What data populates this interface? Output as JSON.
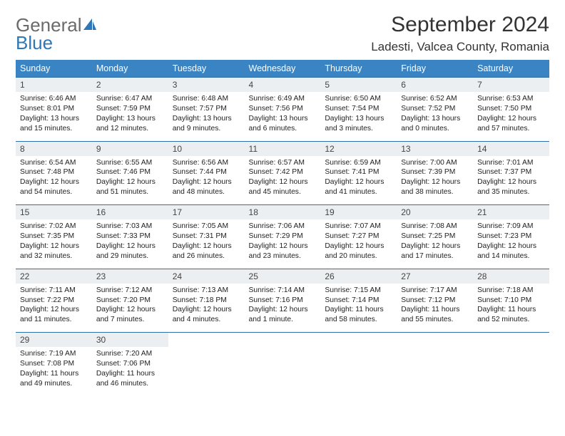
{
  "logo": {
    "general": "General",
    "blue": "Blue"
  },
  "title": "September 2024",
  "location": "Ladesti, Valcea County, Romania",
  "colors": {
    "header_bg": "#3b84c4",
    "header_text": "#ffffff",
    "daynum_bg": "#eceff1",
    "row_border": "#2f6ea9",
    "logo_gray": "#6a6a6a",
    "logo_blue": "#2f77b6",
    "page_bg": "#ffffff",
    "text": "#222222"
  },
  "weekdays": [
    "Sunday",
    "Monday",
    "Tuesday",
    "Wednesday",
    "Thursday",
    "Friday",
    "Saturday"
  ],
  "days": [
    {
      "n": 1,
      "sr": "6:46 AM",
      "ss": "8:01 PM",
      "dl": "13 hours and 15 minutes."
    },
    {
      "n": 2,
      "sr": "6:47 AM",
      "ss": "7:59 PM",
      "dl": "13 hours and 12 minutes."
    },
    {
      "n": 3,
      "sr": "6:48 AM",
      "ss": "7:57 PM",
      "dl": "13 hours and 9 minutes."
    },
    {
      "n": 4,
      "sr": "6:49 AM",
      "ss": "7:56 PM",
      "dl": "13 hours and 6 minutes."
    },
    {
      "n": 5,
      "sr": "6:50 AM",
      "ss": "7:54 PM",
      "dl": "13 hours and 3 minutes."
    },
    {
      "n": 6,
      "sr": "6:52 AM",
      "ss": "7:52 PM",
      "dl": "13 hours and 0 minutes."
    },
    {
      "n": 7,
      "sr": "6:53 AM",
      "ss": "7:50 PM",
      "dl": "12 hours and 57 minutes."
    },
    {
      "n": 8,
      "sr": "6:54 AM",
      "ss": "7:48 PM",
      "dl": "12 hours and 54 minutes."
    },
    {
      "n": 9,
      "sr": "6:55 AM",
      "ss": "7:46 PM",
      "dl": "12 hours and 51 minutes."
    },
    {
      "n": 10,
      "sr": "6:56 AM",
      "ss": "7:44 PM",
      "dl": "12 hours and 48 minutes."
    },
    {
      "n": 11,
      "sr": "6:57 AM",
      "ss": "7:42 PM",
      "dl": "12 hours and 45 minutes."
    },
    {
      "n": 12,
      "sr": "6:59 AM",
      "ss": "7:41 PM",
      "dl": "12 hours and 41 minutes."
    },
    {
      "n": 13,
      "sr": "7:00 AM",
      "ss": "7:39 PM",
      "dl": "12 hours and 38 minutes."
    },
    {
      "n": 14,
      "sr": "7:01 AM",
      "ss": "7:37 PM",
      "dl": "12 hours and 35 minutes."
    },
    {
      "n": 15,
      "sr": "7:02 AM",
      "ss": "7:35 PM",
      "dl": "12 hours and 32 minutes."
    },
    {
      "n": 16,
      "sr": "7:03 AM",
      "ss": "7:33 PM",
      "dl": "12 hours and 29 minutes."
    },
    {
      "n": 17,
      "sr": "7:05 AM",
      "ss": "7:31 PM",
      "dl": "12 hours and 26 minutes."
    },
    {
      "n": 18,
      "sr": "7:06 AM",
      "ss": "7:29 PM",
      "dl": "12 hours and 23 minutes."
    },
    {
      "n": 19,
      "sr": "7:07 AM",
      "ss": "7:27 PM",
      "dl": "12 hours and 20 minutes."
    },
    {
      "n": 20,
      "sr": "7:08 AM",
      "ss": "7:25 PM",
      "dl": "12 hours and 17 minutes."
    },
    {
      "n": 21,
      "sr": "7:09 AM",
      "ss": "7:23 PM",
      "dl": "12 hours and 14 minutes."
    },
    {
      "n": 22,
      "sr": "7:11 AM",
      "ss": "7:22 PM",
      "dl": "12 hours and 11 minutes."
    },
    {
      "n": 23,
      "sr": "7:12 AM",
      "ss": "7:20 PM",
      "dl": "12 hours and 7 minutes."
    },
    {
      "n": 24,
      "sr": "7:13 AM",
      "ss": "7:18 PM",
      "dl": "12 hours and 4 minutes."
    },
    {
      "n": 25,
      "sr": "7:14 AM",
      "ss": "7:16 PM",
      "dl": "12 hours and 1 minute."
    },
    {
      "n": 26,
      "sr": "7:15 AM",
      "ss": "7:14 PM",
      "dl": "11 hours and 58 minutes."
    },
    {
      "n": 27,
      "sr": "7:17 AM",
      "ss": "7:12 PM",
      "dl": "11 hours and 55 minutes."
    },
    {
      "n": 28,
      "sr": "7:18 AM",
      "ss": "7:10 PM",
      "dl": "11 hours and 52 minutes."
    },
    {
      "n": 29,
      "sr": "7:19 AM",
      "ss": "7:08 PM",
      "dl": "11 hours and 49 minutes."
    },
    {
      "n": 30,
      "sr": "7:20 AM",
      "ss": "7:06 PM",
      "dl": "11 hours and 46 minutes."
    }
  ],
  "labels": {
    "sunrise": "Sunrise:",
    "sunset": "Sunset:",
    "daylight": "Daylight:"
  },
  "layout": {
    "start_offset": 0,
    "total_cells": 35
  }
}
